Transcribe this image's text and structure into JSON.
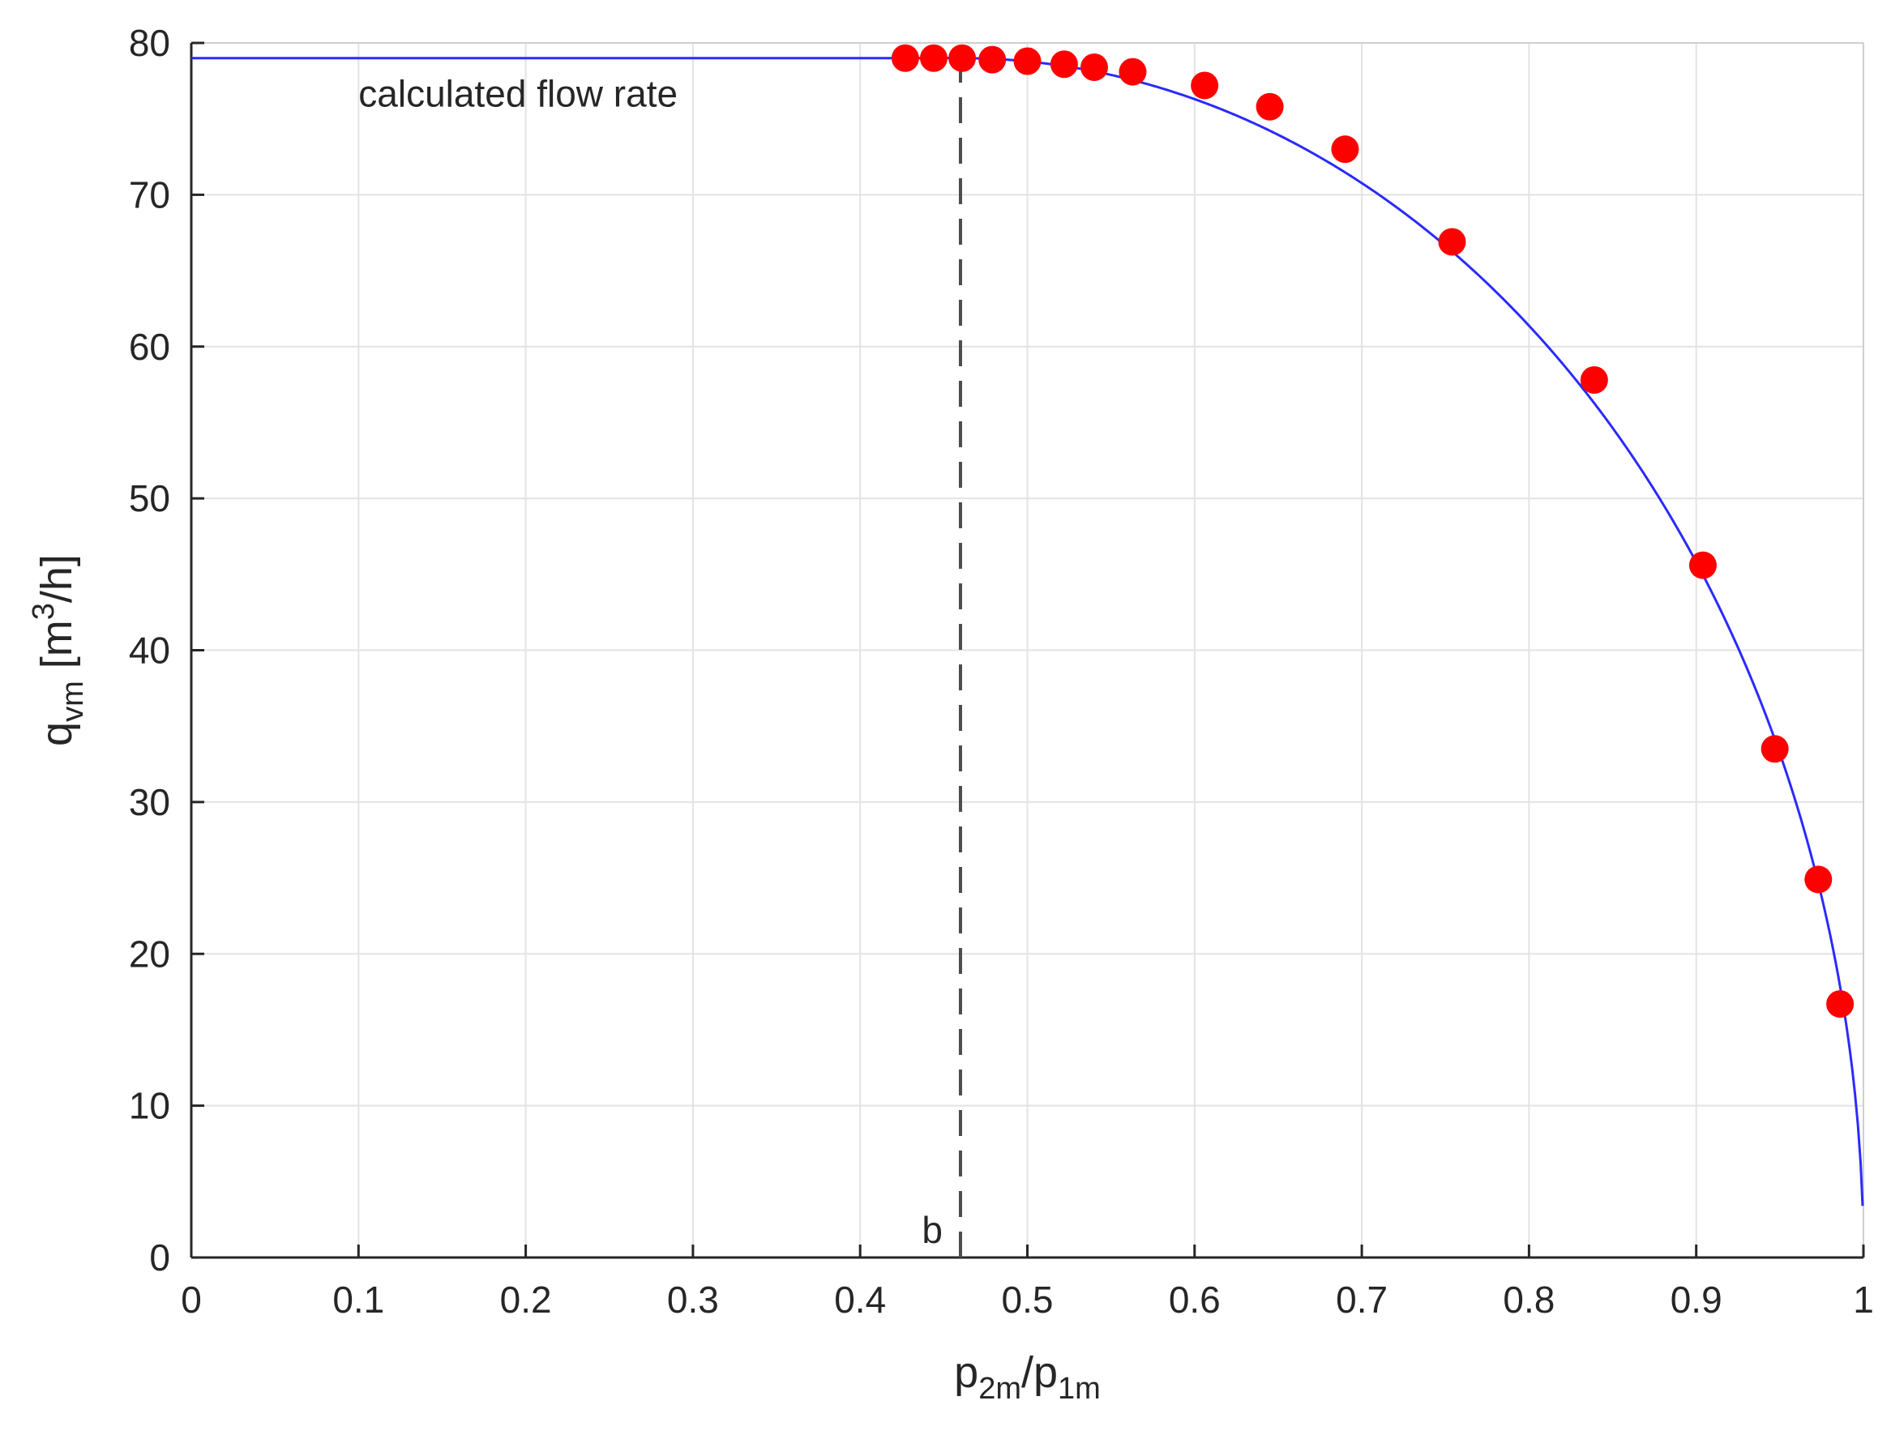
{
  "chart_data": {
    "type": "scatter",
    "x_label": "p_{2m}/p_{1m}",
    "y_label": "q_{vm} [m^3/h]",
    "xlim": [
      0,
      1
    ],
    "ylim": [
      0,
      80
    ],
    "x_ticks": [
      0,
      0.1,
      0.2,
      0.3,
      0.4,
      0.5,
      0.6,
      0.7,
      0.8,
      0.9,
      1
    ],
    "y_ticks": [
      0,
      10,
      20,
      30,
      40,
      50,
      60,
      70,
      80
    ],
    "x_tick_labels": [
      "0",
      "0.1",
      "0.2",
      "0.3",
      "0.4",
      "0.5",
      "0.6",
      "0.7",
      "0.8",
      "0.9",
      "1"
    ],
    "y_tick_labels": [
      "0",
      "10",
      "20",
      "30",
      "40",
      "50",
      "60",
      "70",
      "80"
    ],
    "grid": true,
    "series": [
      {
        "kind": "line",
        "color": "#2a2aff",
        "critical_ratio": 0.46,
        "max_flow": 79.0
      },
      {
        "kind": "scatter",
        "color": "#ff0000",
        "points": [
          [
            0.427,
            79.0
          ],
          [
            0.444,
            79.0
          ],
          [
            0.461,
            79.0
          ],
          [
            0.479,
            78.9
          ],
          [
            0.5,
            78.8
          ],
          [
            0.522,
            78.6
          ],
          [
            0.54,
            78.4
          ],
          [
            0.563,
            78.1
          ],
          [
            0.606,
            77.2
          ],
          [
            0.645,
            75.8
          ],
          [
            0.69,
            73.0
          ],
          [
            0.754,
            66.9
          ],
          [
            0.839,
            57.8
          ],
          [
            0.904,
            45.6
          ],
          [
            0.947,
            33.5
          ],
          [
            0.973,
            24.9
          ],
          [
            0.986,
            16.7
          ]
        ]
      }
    ],
    "annotations": {
      "curve_label": "calculated flow rate",
      "critical_marker": {
        "x": 0.46,
        "label": "b",
        "line_style": "dashed",
        "color": "#4d4d4d"
      }
    }
  }
}
